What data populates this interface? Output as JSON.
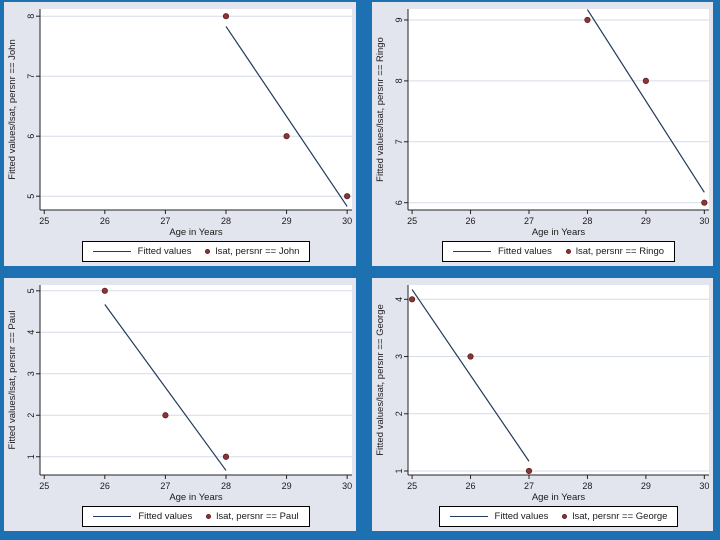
{
  "style": {
    "slide_background": "#1d70b2",
    "panel_background": "#e2e5ee",
    "plot_bg": "#ffffff",
    "grid_color": "#d6dce8",
    "axis_color": "#222222",
    "line_color": "#21395c",
    "marker_fill": "#8b3536",
    "marker_stroke": "#5f1f1f",
    "text_color": "#1a1a1a"
  },
  "chart_data": [
    {
      "type": "scatter",
      "person": "John",
      "title": "",
      "xlabel": "Age in Years",
      "ylabel": "Fitted values/lsat, persnr == John",
      "legend_position": "bottom",
      "grid": "horizontal",
      "legend": {
        "line_label": "Fitted values",
        "marker_label": "lsat, persnr == John"
      },
      "x_ticks": [
        25,
        26,
        27,
        28,
        29,
        30
      ],
      "y_ticks": [
        5,
        6,
        7,
        8
      ],
      "xlim": [
        24.93,
        30.08
      ],
      "ylim": [
        4.77,
        8.12
      ],
      "points": [
        [
          28,
          8
        ],
        [
          29,
          6
        ],
        [
          30,
          5
        ]
      ],
      "fitted_values": [
        7.83,
        6.33,
        4.83
      ],
      "fit_line": {
        "x": [
          28,
          30
        ],
        "y": [
          7.83,
          4.83
        ]
      }
    },
    {
      "type": "scatter",
      "person": "Ringo",
      "title": "",
      "xlabel": "Age in Years",
      "ylabel": "Fitted values/lsat, persnr == Ringo",
      "legend_position": "bottom",
      "grid": "horizontal",
      "legend": {
        "line_label": "Fitted values",
        "marker_label": "lsat, persnr == Ringo"
      },
      "x_ticks": [
        25,
        26,
        27,
        28,
        29,
        30
      ],
      "y_ticks": [
        6,
        7,
        8,
        9
      ],
      "xlim": [
        24.93,
        30.08
      ],
      "ylim": [
        5.88,
        9.18
      ],
      "points": [
        [
          28,
          9
        ],
        [
          29,
          8
        ],
        [
          30,
          6
        ]
      ],
      "fitted_values": [
        9.17,
        7.67,
        6.17
      ],
      "fit_line": {
        "x": [
          28,
          30
        ],
        "y": [
          9.17,
          6.17
        ]
      }
    },
    {
      "type": "scatter",
      "person": "Paul",
      "title": "",
      "xlabel": "Age in Years",
      "ylabel": "Fitted values/lsat, persnr == Paul",
      "legend_position": "bottom",
      "grid": "horizontal",
      "legend": {
        "line_label": "Fitted values",
        "marker_label": "lsat, persnr == Paul"
      },
      "x_ticks": [
        25,
        26,
        27,
        28,
        29,
        30
      ],
      "y_ticks": [
        1,
        2,
        3,
        4,
        5
      ],
      "xlim": [
        24.93,
        30.08
      ],
      "ylim": [
        0.56,
        5.14
      ],
      "points": [
        [
          26,
          5
        ],
        [
          27,
          2
        ],
        [
          28,
          1
        ]
      ],
      "fitted_values": [
        4.67,
        2.67,
        0.67
      ],
      "fit_line": {
        "x": [
          26,
          28
        ],
        "y": [
          4.67,
          0.67
        ]
      }
    },
    {
      "type": "scatter",
      "person": "George",
      "title": "",
      "xlabel": "Age in Years",
      "ylabel": "Fitted values/lsat, persnr == George",
      "legend_position": "bottom",
      "grid": "horizontal",
      "legend": {
        "line_label": "Fitted values",
        "marker_label": "lsat, persnr == George"
      },
      "x_ticks": [
        25,
        26,
        27,
        28,
        29,
        30
      ],
      "y_ticks": [
        1,
        2,
        3,
        4
      ],
      "xlim": [
        24.93,
        30.08
      ],
      "ylim": [
        0.93,
        4.25
      ],
      "points": [
        [
          25,
          4
        ],
        [
          26,
          3
        ],
        [
          27,
          1
        ]
      ],
      "fitted_values": [
        4.17,
        2.67,
        1.17
      ],
      "fit_line": {
        "x": [
          25,
          27
        ],
        "y": [
          4.17,
          1.17
        ]
      }
    }
  ]
}
